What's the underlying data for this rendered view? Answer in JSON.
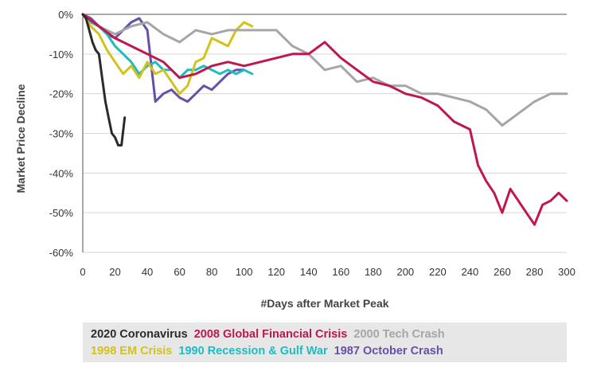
{
  "chart_data": {
    "type": "line",
    "xlabel": "#Days after Market Peak",
    "ylabel": "Market Price Decline",
    "xlim": [
      0,
      300
    ],
    "ylim": [
      -60,
      0
    ],
    "xticks": [
      0,
      20,
      40,
      60,
      80,
      100,
      120,
      140,
      160,
      180,
      200,
      220,
      240,
      260,
      280,
      300
    ],
    "xtick_labels": [
      "0",
      "20",
      "40",
      "60",
      "80",
      "100",
      "120",
      "140",
      "160",
      "180",
      "200",
      "220",
      "240",
      "260",
      "280",
      "300"
    ],
    "yticks": [
      0,
      -10,
      -20,
      -30,
      -40,
      -50,
      -60
    ],
    "ytick_labels": [
      "0%",
      "-10%",
      "-20%",
      "-30%",
      "-40%",
      "-50%",
      "-60%"
    ],
    "grid": "horizontal",
    "legend_position": "bottom",
    "series": [
      {
        "name": "2020 Coronavirus",
        "color": "#2b2b2b",
        "x": [
          0,
          2,
          4,
          6,
          8,
          10,
          12,
          14,
          16,
          18,
          20,
          22,
          24,
          26
        ],
        "y": [
          0,
          -1,
          -4,
          -7,
          -9,
          -10,
          -16,
          -22,
          -26,
          -30,
          -31,
          -33,
          -33,
          -26
        ]
      },
      {
        "name": "2008 Global Financial Crisis",
        "color": "#c0174e",
        "x": [
          0,
          10,
          20,
          30,
          40,
          50,
          60,
          70,
          80,
          90,
          100,
          110,
          120,
          130,
          140,
          150,
          160,
          170,
          180,
          190,
          200,
          210,
          220,
          230,
          240,
          245,
          250,
          255,
          260,
          265,
          270,
          275,
          280,
          285,
          290,
          295,
          300
        ],
        "y": [
          0,
          -3,
          -6,
          -8,
          -10,
          -12,
          -16,
          -15,
          -13,
          -12,
          -13,
          -12,
          -11,
          -10,
          -10,
          -7,
          -11,
          -14,
          -17,
          -18,
          -20,
          -21,
          -23,
          -27,
          -29,
          -38,
          -42,
          -45,
          -50,
          -44,
          -47,
          -50,
          -53,
          -48,
          -47,
          -45,
          -47
        ]
      },
      {
        "name": "2000 Tech Crash",
        "color": "#a6a6a6",
        "x": [
          0,
          10,
          20,
          30,
          40,
          50,
          60,
          70,
          80,
          90,
          100,
          110,
          120,
          130,
          140,
          150,
          160,
          170,
          180,
          190,
          200,
          210,
          220,
          230,
          240,
          250,
          260,
          270,
          280,
          290,
          300
        ],
        "y": [
          0,
          -3,
          -5,
          -3,
          -2,
          -5,
          -7,
          -4,
          -5,
          -4,
          -4,
          -4,
          -4,
          -8,
          -10,
          -14,
          -13,
          -17,
          -16,
          -18,
          -18,
          -20,
          -20,
          -21,
          -22,
          -24,
          -28,
          -25,
          -22,
          -20,
          -20
        ]
      },
      {
        "name": "1998 EM Crisis",
        "color": "#d4c21b",
        "x": [
          0,
          5,
          10,
          15,
          20,
          25,
          30,
          35,
          40,
          45,
          50,
          55,
          60,
          65,
          70,
          75,
          80,
          85,
          90,
          95,
          100,
          105
        ],
        "y": [
          0,
          -3,
          -5,
          -9,
          -12,
          -15,
          -13,
          -16,
          -12,
          -15,
          -14,
          -17,
          -20,
          -18,
          -12,
          -11,
          -6,
          -7,
          -8,
          -4,
          -2,
          -3
        ]
      },
      {
        "name": "1990 Recession & Gulf War",
        "color": "#1cbcc3",
        "x": [
          0,
          5,
          10,
          15,
          20,
          25,
          30,
          35,
          40,
          45,
          50,
          55,
          60,
          65,
          70,
          75,
          80,
          85,
          90,
          95,
          100,
          105
        ],
        "y": [
          0,
          -2,
          -3,
          -5,
          -8,
          -10,
          -12,
          -15,
          -13,
          -12,
          -14,
          -14,
          -16,
          -14,
          -14,
          -13,
          -14,
          -15,
          -14,
          -15,
          -14,
          -15
        ]
      },
      {
        "name": "1987 October Crash",
        "color": "#6650a8",
        "x": [
          0,
          5,
          10,
          15,
          20,
          25,
          30,
          35,
          40,
          45,
          50,
          55,
          60,
          65,
          70,
          75,
          80,
          85,
          90,
          95,
          100
        ],
        "y": [
          0,
          -1,
          -3,
          -5,
          -6,
          -4,
          -2,
          -1,
          -4,
          -22,
          -20,
          -19,
          -21,
          -22,
          -20,
          -18,
          -19,
          -17,
          -15,
          -14,
          -14
        ]
      }
    ]
  },
  "legend": {
    "rows": [
      [
        {
          "label": "2020 Coronavirus",
          "color": "#2b2b2b"
        },
        {
          "label": "2008 Global Financial Crisis",
          "color": "#c0174e"
        },
        {
          "label": "2000 Tech Crash",
          "color": "#a6a6a6"
        }
      ],
      [
        {
          "label": "1998 EM Crisis",
          "color": "#d4c21b"
        },
        {
          "label": "1990 Recession & Gulf War",
          "color": "#1cbcc3"
        },
        {
          "label": "1987 October Crash",
          "color": "#6650a8"
        }
      ]
    ]
  }
}
